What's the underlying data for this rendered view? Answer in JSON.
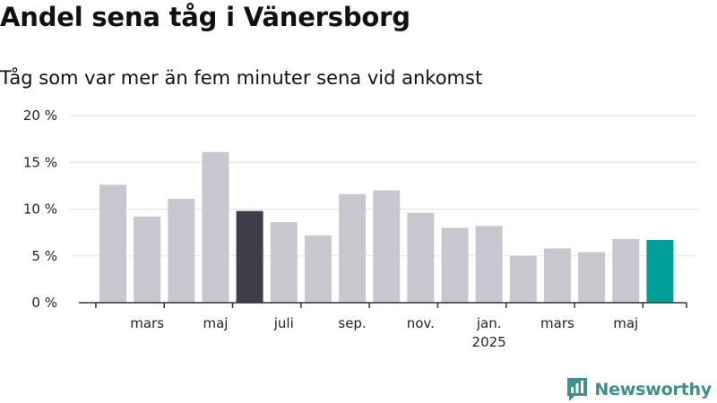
{
  "title": "Andel sena tåg i Vänersborg",
  "subtitle": "Tåg som var mer än fem minuter sena vid ankomst",
  "brand": {
    "name": "Newsworthy",
    "logo_icon": "bar-chart-speech-bubble-icon"
  },
  "colors": {
    "bar_default": "#c8c7d0",
    "bar_highlight_dark": "#3e3d4a",
    "bar_highlight_latest": "#00a09a",
    "grid": "#e2e2e2",
    "axis": "#333333"
  },
  "chart_data": {
    "type": "bar",
    "title": "Andel sena tåg i Vänersborg",
    "subtitle": "Tåg som var mer än fem minuter sena vid ankomst",
    "unit": "%",
    "ylim": [
      0,
      20
    ],
    "yticks": [
      {
        "value": 0,
        "label": "0 %"
      },
      {
        "value": 5,
        "label": "5 %"
      },
      {
        "value": 10,
        "label": "10 %"
      },
      {
        "value": 15,
        "label": "15 %"
      },
      {
        "value": 20,
        "label": "20 %"
      }
    ],
    "xtick_labels": [
      {
        "index": 1,
        "label": "mars",
        "sublabel": ""
      },
      {
        "index": 3,
        "label": "maj",
        "sublabel": ""
      },
      {
        "index": 5,
        "label": "juli",
        "sublabel": ""
      },
      {
        "index": 7,
        "label": "sep.",
        "sublabel": ""
      },
      {
        "index": 9,
        "label": "nov.",
        "sublabel": ""
      },
      {
        "index": 11,
        "label": "jan.",
        "sublabel": "2025"
      },
      {
        "index": 13,
        "label": "mars",
        "sublabel": ""
      },
      {
        "index": 15,
        "label": "maj",
        "sublabel": ""
      }
    ],
    "values": [
      12.6,
      9.2,
      11.1,
      16.1,
      9.8,
      8.6,
      7.2,
      11.6,
      12.0,
      9.6,
      8.0,
      8.2,
      5.0,
      5.8,
      5.4,
      6.8,
      6.7
    ],
    "highlight": {
      "4": "dark",
      "16": "latest"
    },
    "grid": true,
    "legend": "none"
  }
}
